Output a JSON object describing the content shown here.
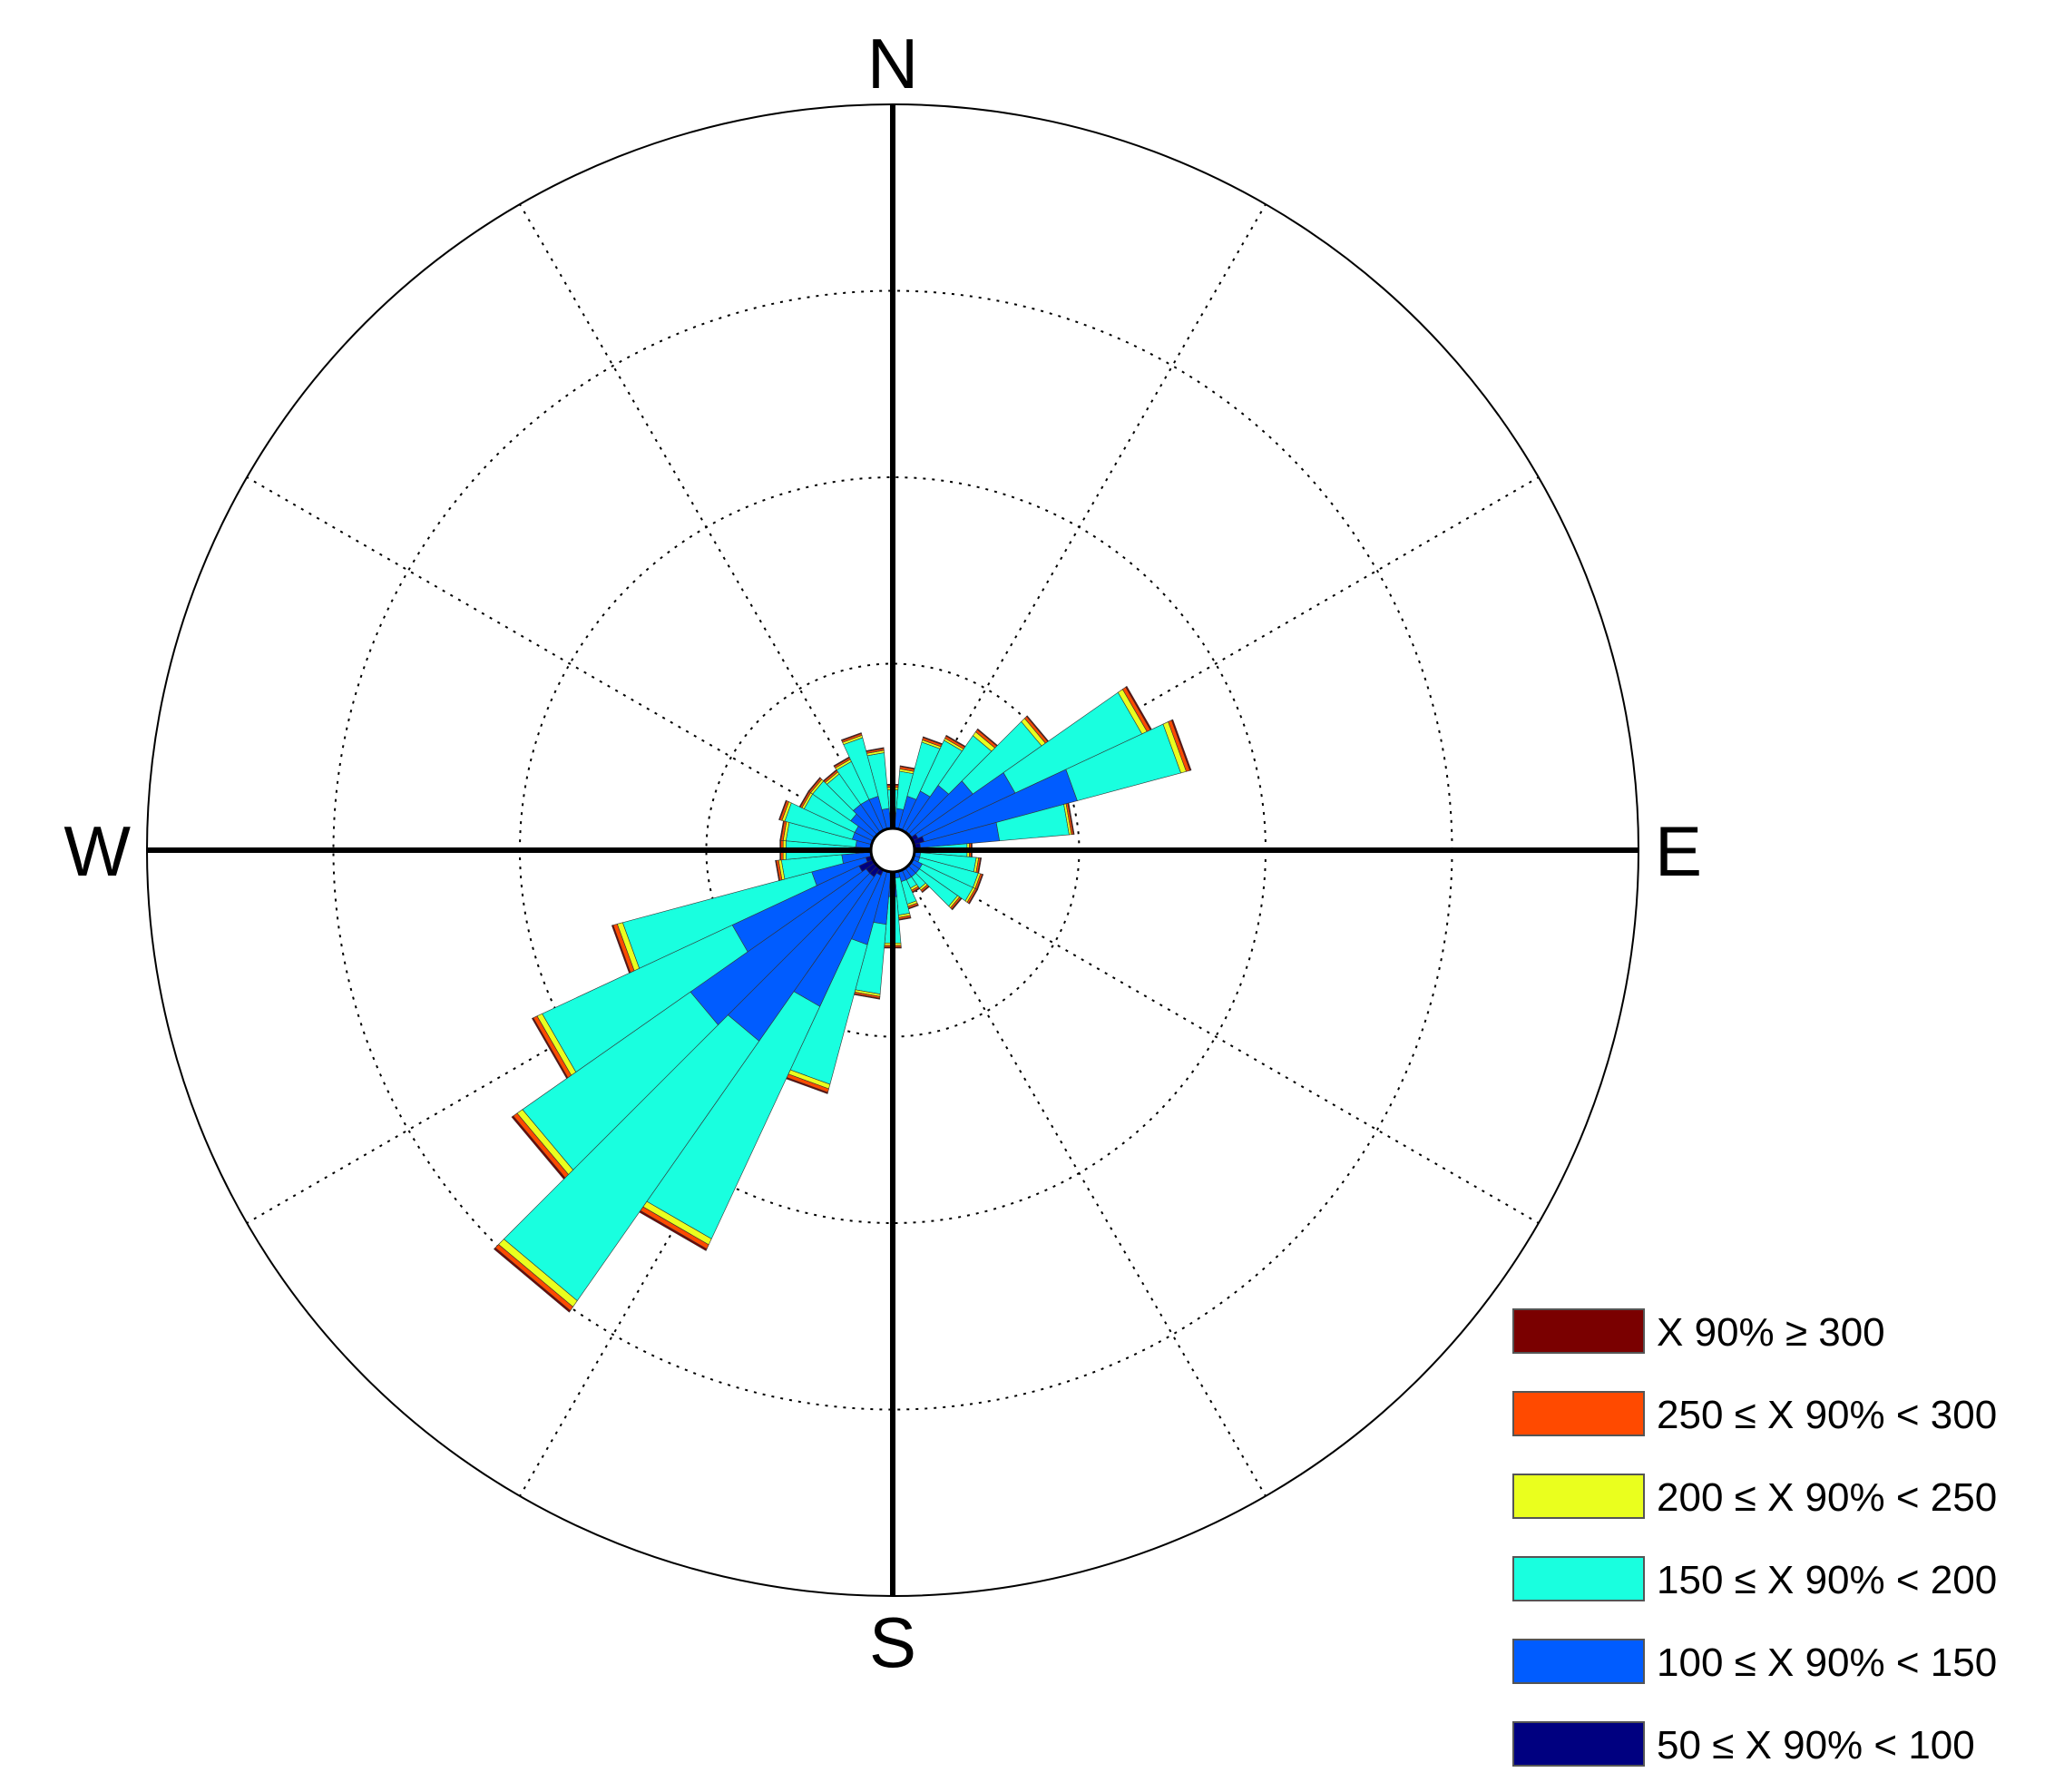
{
  "chart_data": {
    "type": "polar-bar",
    "title": "",
    "compass_labels": {
      "north": "N",
      "east": "E",
      "south": "S",
      "west": "W"
    },
    "direction_bins_deg": 10,
    "directions_deg": [
      0,
      10,
      20,
      30,
      40,
      50,
      60,
      70,
      80,
      90,
      100,
      110,
      120,
      130,
      140,
      150,
      160,
      170,
      180,
      190,
      200,
      210,
      220,
      230,
      240,
      250,
      260,
      270,
      280,
      290,
      300,
      310,
      320,
      330,
      340,
      350
    ],
    "radial_max": 16,
    "radial_grid": [
      4,
      8,
      12,
      16
    ],
    "grid": true,
    "legend_position": "bottom-right",
    "legend": [
      {
        "label": "X 90% ≥ 300",
        "color": "#7a0000"
      },
      {
        "label": "250 ≤ X 90% < 300",
        "color": "#ff4a00"
      },
      {
        "label": "200 ≤ X 90% < 250",
        "color": "#eaff1e"
      },
      {
        "label": "150 ≤ X 90% < 200",
        "color": "#19ffdf"
      },
      {
        "label": "100 ≤ X 90% < 150",
        "color": "#005cff"
      },
      {
        "label": "50 ≤ X 90% < 100",
        "color": "#000080"
      }
    ],
    "stack_order_inner_to_outer": [
      "50 ≤ X 90% < 100",
      "100 ≤ X 90% < 150",
      "150 ≤ X 90% < 200",
      "200 ≤ X 90% < 250",
      "250 ≤ X 90% < 300",
      "X 90% ≥ 300"
    ],
    "series": [
      {
        "name": "50 ≤ X 90% < 100",
        "values": [
          0.3,
          0.3,
          0.4,
          0.4,
          0.5,
          0.5,
          0.6,
          0.7,
          0.6,
          0.3,
          0.3,
          0.3,
          0.3,
          0.3,
          0.3,
          0.3,
          0.2,
          0.2,
          0.3,
          0.4,
          0.4,
          0.6,
          0.7,
          0.7,
          0.8,
          0.6,
          0.4,
          0.4,
          0.3,
          0.4,
          0.3,
          0.4,
          0.4,
          0.4,
          0.3,
          0.3
        ]
      },
      {
        "name": "100 ≤ X 90% < 150",
        "values": [
          0.5,
          0.6,
          0.8,
          1.0,
          1.2,
          1.6,
          2.3,
          3.4,
          1.7,
          0.4,
          0.3,
          0.3,
          0.4,
          0.4,
          0.4,
          0.4,
          0.5,
          0.4,
          0.7,
          1.2,
          1.7,
          3.1,
          4.3,
          4.6,
          3.0,
          1.2,
          0.7,
          0.4,
          0.5,
          0.5,
          0.6,
          0.7,
          0.8,
          0.8,
          0.9,
          0.6
        ]
      },
      {
        "name": "150 ≤ X 90% < 200",
        "values": [
          0.5,
          0.8,
          1.2,
          1.2,
          1.3,
          1.8,
          3.0,
          2.3,
          1.5,
          0.9,
          1.2,
          1.3,
          1.2,
          1.0,
          0.3,
          0.2,
          0.5,
          0.8,
          1.0,
          1.5,
          3.1,
          5.5,
          6.8,
          4.4,
          4.5,
          4.2,
          1.3,
          1.5,
          1.5,
          1.5,
          1.2,
          1.0,
          0.8,
          0.9,
          1.3,
          1.2
        ]
      },
      {
        "name": "200 ≤ X 90% < 250",
        "values": [
          0.05,
          0.05,
          0.05,
          0.05,
          0.1,
          0.1,
          0.12,
          0.12,
          0.05,
          0.05,
          0.05,
          0.05,
          0.05,
          0.05,
          0.05,
          0.05,
          0.05,
          0.05,
          0.05,
          0.05,
          0.1,
          0.14,
          0.16,
          0.14,
          0.12,
          0.12,
          0.06,
          0.06,
          0.06,
          0.06,
          0.05,
          0.05,
          0.05,
          0.05,
          0.05,
          0.05
        ]
      },
      {
        "name": "250 ≤ X 90% < 300",
        "values": [
          0.05,
          0.05,
          0.05,
          0.05,
          0.06,
          0.06,
          0.08,
          0.08,
          0.04,
          0.04,
          0.04,
          0.04,
          0.04,
          0.04,
          0.04,
          0.04,
          0.04,
          0.04,
          0.04,
          0.04,
          0.08,
          0.1,
          0.1,
          0.1,
          0.09,
          0.09,
          0.05,
          0.05,
          0.05,
          0.05,
          0.04,
          0.04,
          0.04,
          0.04,
          0.04,
          0.04
        ]
      },
      {
        "name": "X 90% ≥ 300",
        "values": [
          0.02,
          0.02,
          0.02,
          0.02,
          0.02,
          0.02,
          0.03,
          0.03,
          0.02,
          0.02,
          0.02,
          0.02,
          0.02,
          0.02,
          0.02,
          0.02,
          0.02,
          0.02,
          0.02,
          0.02,
          0.03,
          0.04,
          0.04,
          0.04,
          0.03,
          0.03,
          0.02,
          0.02,
          0.02,
          0.02,
          0.02,
          0.02,
          0.02,
          0.02,
          0.02,
          0.02
        ]
      }
    ]
  }
}
